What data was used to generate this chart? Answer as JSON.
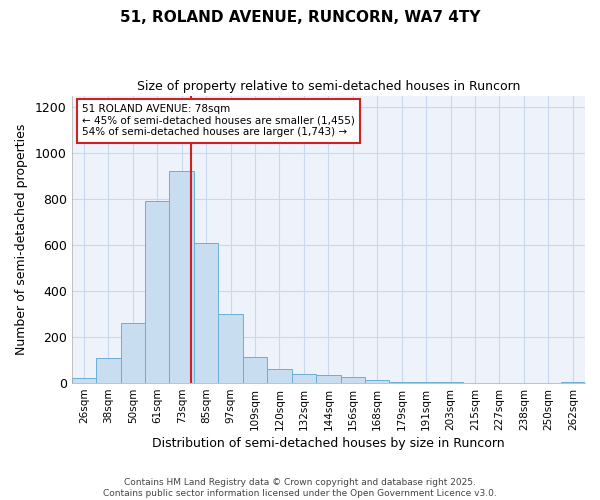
{
  "title_line1": "51, ROLAND AVENUE, RUNCORN, WA7 4TY",
  "title_line2": "Size of property relative to semi-detached houses in Runcorn",
  "xlabel": "Distribution of semi-detached houses by size in Runcorn",
  "ylabel": "Number of semi-detached properties",
  "categories": [
    "26sqm",
    "38sqm",
    "50sqm",
    "61sqm",
    "73sqm",
    "85sqm",
    "97sqm",
    "109sqm",
    "120sqm",
    "132sqm",
    "144sqm",
    "156sqm",
    "168sqm",
    "179sqm",
    "191sqm",
    "203sqm",
    "215sqm",
    "227sqm",
    "238sqm",
    "250sqm",
    "262sqm"
  ],
  "values": [
    20,
    110,
    260,
    790,
    920,
    610,
    300,
    115,
    60,
    40,
    35,
    25,
    12,
    5,
    4,
    3,
    2,
    2,
    1,
    1,
    3
  ],
  "bar_color": "#c8ddf0",
  "bar_edge_color": "#6aaed6",
  "grid_color": "#c8d8ee",
  "background_color": "#eef3fb",
  "property_sqm": 78,
  "property_label": "51 ROLAND AVENUE: 78sqm",
  "pct_smaller": 45,
  "pct_larger": 54,
  "n_smaller": 1455,
  "n_larger": 1743,
  "red_line_color": "#cc2222",
  "annotation_box_color": "#ffffff",
  "annotation_box_edge": "#cc2222",
  "ylim": [
    0,
    1250
  ],
  "yticks": [
    0,
    200,
    400,
    600,
    800,
    1000,
    1200
  ],
  "footer_line1": "Contains HM Land Registry data © Crown copyright and database right 2025.",
  "footer_line2": "Contains public sector information licensed under the Open Government Licence v3.0."
}
